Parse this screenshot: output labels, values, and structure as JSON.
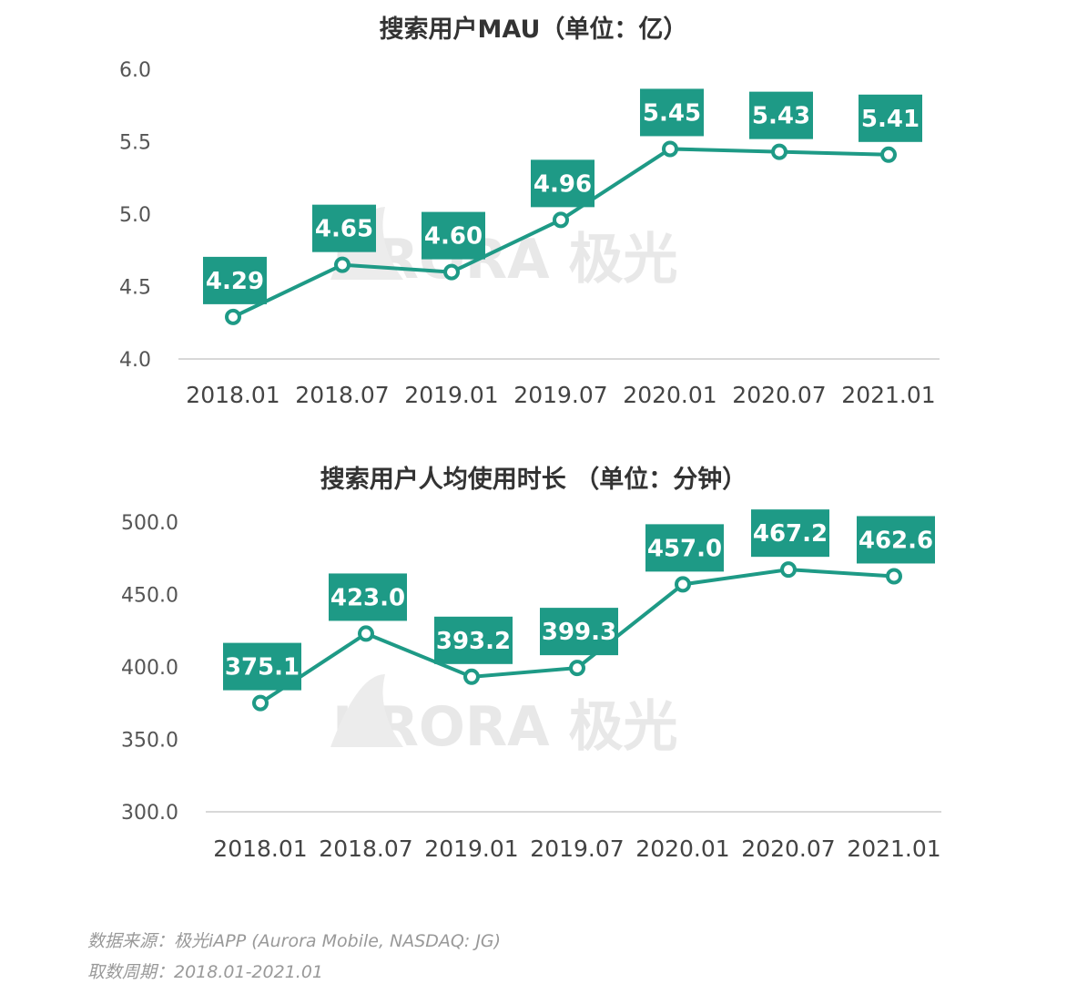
{
  "chart_data": [
    {
      "type": "line",
      "title": "搜索用户MAU（单位：亿）",
      "categories": [
        "2018.01",
        "2018.07",
        "2019.01",
        "2019.07",
        "2020.01",
        "2020.07",
        "2021.01"
      ],
      "values": [
        4.29,
        4.65,
        4.6,
        4.96,
        5.45,
        5.43,
        5.41
      ],
      "value_labels": [
        "4.29",
        "4.65",
        "4.60",
        "4.96",
        "5.45",
        "5.43",
        "5.41"
      ],
      "yticks": [
        "4.0",
        "4.5",
        "5.0",
        "5.5",
        "6.0"
      ],
      "ylim": [
        4.0,
        6.0
      ],
      "xlabel": "",
      "ylabel": "",
      "grid": false
    },
    {
      "type": "line",
      "title": "搜索用户人均使用时长 （单位：分钟）",
      "categories": [
        "2018.01",
        "2018.07",
        "2019.01",
        "2019.07",
        "2020.01",
        "2020.07",
        "2021.01"
      ],
      "values": [
        375.1,
        423.0,
        393.2,
        399.3,
        457.0,
        467.2,
        462.6
      ],
      "value_labels": [
        "375.1",
        "423.0",
        "393.2",
        "399.3",
        "457.0",
        "467.2",
        "462.6"
      ],
      "yticks": [
        "300.0",
        "350.0",
        "400.0",
        "450.0",
        "500.0"
      ],
      "ylim": [
        300,
        500
      ],
      "xlabel": "",
      "ylabel": "",
      "grid": false
    }
  ],
  "colors": {
    "series": "#1e9a86",
    "label_text": "#ffffff",
    "watermark": "#e8e8e8"
  },
  "watermark": {
    "icon": "aurora-logo-icon",
    "text": "URORA 极光"
  },
  "footer": {
    "source": "数据来源：极光iAPP (Aurora Mobile, NASDAQ: JG)",
    "period": "取数周期：2018.01-2021.01"
  }
}
